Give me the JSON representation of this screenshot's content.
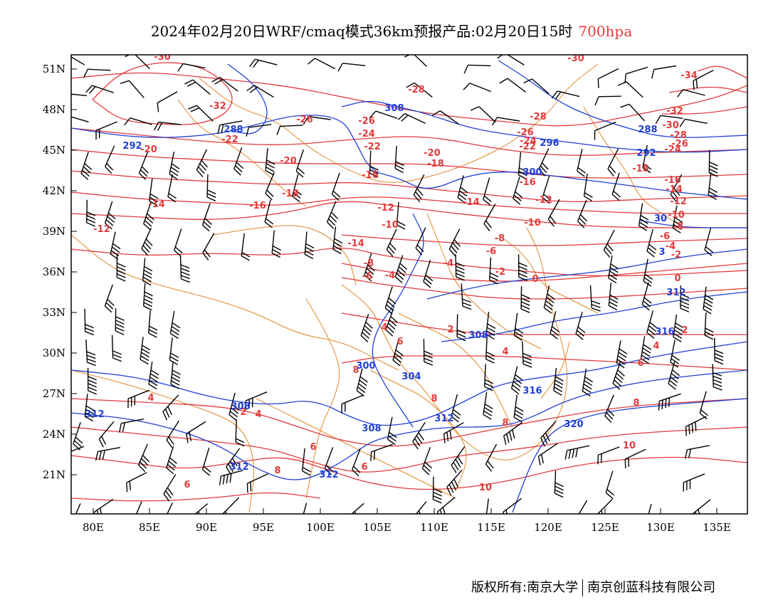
{
  "header": {
    "title": "2024年02月20日WRF/cmaq模式36km预报产品:02月20日15时",
    "level": "700hpa"
  },
  "map": {
    "lon_labels": [
      "80E",
      "85E",
      "90E",
      "95E",
      "100E",
      "105E",
      "110E",
      "115E",
      "120E",
      "125E",
      "130E",
      "135E"
    ],
    "lat_labels": [
      "51N",
      "48N",
      "45N",
      "42N",
      "39N",
      "36N",
      "33N",
      "30N",
      "27N",
      "24N",
      "21N"
    ],
    "lon_range": [
      78,
      138
    ],
    "lat_range": [
      18,
      52
    ],
    "colors": {
      "temperature": "#e23b3b",
      "geopotential": "#1f3fd6",
      "boundaries": "#e0872a",
      "wind": "#000000"
    },
    "temperature_labels": [
      "-30",
      "-32",
      "-28",
      "-26",
      "-24",
      "-22",
      "-20",
      "-18",
      "-16",
      "-14",
      "-12",
      "-10",
      "-8",
      "-6",
      "-4",
      "-2",
      "0",
      "2",
      "4",
      "6",
      "8",
      "10",
      "-34"
    ],
    "height_labels": [
      "308",
      "300",
      "296",
      "288",
      "292",
      "304",
      "312",
      "316",
      "320"
    ]
  },
  "footer": {
    "left": "版权所有:南京大学",
    "right": "南京创蓝科技有限公司"
  }
}
